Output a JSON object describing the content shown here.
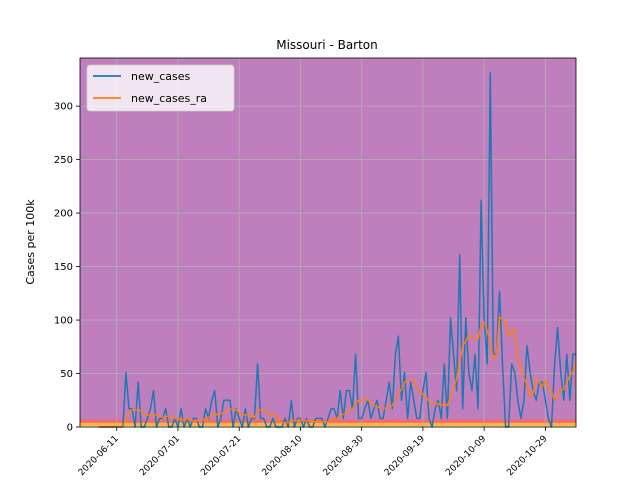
{
  "chart_data": {
    "type": "line",
    "title": "Missouri - Barton",
    "xlabel": "",
    "ylabel": "Cases per 100k",
    "ylim": [
      0,
      345
    ],
    "xlim": [
      "2020-05-30",
      "2020-11-08"
    ],
    "yticks": [
      0,
      50,
      100,
      150,
      200,
      250,
      300
    ],
    "xticks": [
      "2020-06-11",
      "2020-07-01",
      "2020-07-21",
      "2020-08-10",
      "2020-08-30",
      "2020-09-19",
      "2020-10-09",
      "2020-10-29"
    ],
    "grid": true,
    "legend_position": "top-left",
    "plot_background": "#bf7fbf",
    "background_bands": [
      {
        "from": 0,
        "to": 1,
        "color": "#ffff66"
      },
      {
        "from": 1,
        "to": 4,
        "color": "#ffb347"
      },
      {
        "from": 4,
        "to": 7,
        "color": "#f26b6b"
      }
    ],
    "x_start": "2020-06-05",
    "x_step_days": 1,
    "series": [
      {
        "name": "new_cases",
        "color": "#1f77b4",
        "values": [
          0,
          0,
          0,
          0,
          0,
          0,
          0,
          0,
          0,
          51,
          17,
          17,
          0,
          42,
          0,
          0,
          8,
          17,
          34,
          0,
          8,
          8,
          17,
          0,
          0,
          8,
          0,
          17,
          0,
          8,
          0,
          8,
          8,
          0,
          0,
          17,
          8,
          25,
          34,
          0,
          8,
          25,
          25,
          25,
          0,
          17,
          8,
          0,
          17,
          0,
          8,
          8,
          59,
          8,
          8,
          0,
          0,
          8,
          0,
          0,
          0,
          8,
          0,
          25,
          0,
          8,
          8,
          0,
          8,
          0,
          0,
          8,
          8,
          8,
          0,
          8,
          17,
          17,
          8,
          34,
          8,
          34,
          34,
          17,
          68,
          8,
          8,
          17,
          25,
          8,
          17,
          25,
          8,
          8,
          25,
          42,
          17,
          68,
          85,
          25,
          51,
          8,
          42,
          25,
          8,
          8,
          34,
          51,
          8,
          0,
          17,
          25,
          8,
          59,
          8,
          102,
          68,
          34,
          161,
          17,
          102,
          51,
          34,
          68,
          17,
          212,
          102,
          59,
          331,
          68,
          68,
          127,
          59,
          0,
          0,
          59,
          51,
          25,
          8,
          25,
          76,
          51,
          34,
          25,
          42,
          42,
          25,
          8,
          0,
          59,
          93,
          51,
          25,
          68,
          25,
          68,
          68
        ]
      },
      {
        "name": "new_cases_ra",
        "color": "#ff7f0e",
        "values": [
          0,
          0,
          0,
          0,
          0,
          0,
          0,
          0,
          0,
          8,
          14,
          16,
          16,
          16,
          15,
          11,
          11,
          11,
          10,
          12,
          10,
          9,
          10,
          10,
          10,
          8,
          7,
          8,
          6,
          8,
          6,
          6,
          6,
          6,
          6,
          8,
          9,
          11,
          13,
          11,
          13,
          13,
          15,
          17,
          16,
          16,
          13,
          12,
          11,
          12,
          9,
          9,
          15,
          16,
          15,
          14,
          11,
          12,
          10,
          6,
          4,
          4,
          4,
          6,
          6,
          6,
          7,
          6,
          6,
          6,
          5,
          5,
          5,
          5,
          5,
          5,
          7,
          8,
          8,
          11,
          12,
          13,
          15,
          17,
          22,
          25,
          25,
          26,
          25,
          23,
          20,
          19,
          18,
          17,
          18,
          19,
          20,
          26,
          32,
          35,
          42,
          44,
          44,
          44,
          36,
          34,
          30,
          28,
          24,
          22,
          22,
          22,
          20,
          22,
          20,
          28,
          36,
          45,
          60,
          76,
          80,
          86,
          84,
          82,
          82,
          95,
          98,
          90,
          80,
          64,
          68,
          103,
          100,
          98,
          85,
          90,
          92,
          62,
          56,
          45,
          40,
          28,
          32,
          45,
          42,
          38,
          43,
          36,
          34,
          25,
          30,
          35,
          35,
          42,
          48,
          52,
          60
        ]
      }
    ]
  }
}
